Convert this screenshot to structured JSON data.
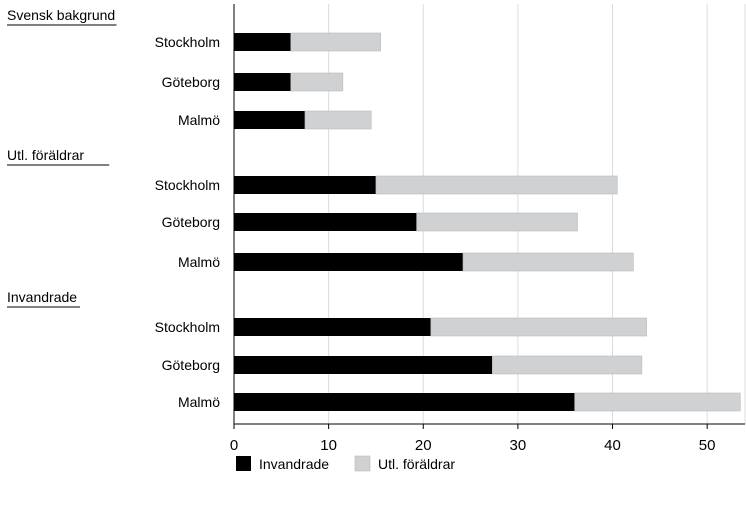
{
  "chart_data": {
    "type": "bar",
    "orientation": "horizontal",
    "stacked": true,
    "groups": [
      {
        "label": "Svensk bakgrund",
        "categories": [
          "Stockholm",
          "Göteborg",
          "Malmö"
        ],
        "series_values": {
          "Invandrade": [
            6.0,
            6.0,
            7.5
          ],
          "Utl. föräldrar": [
            9.5,
            5.5,
            7.0
          ]
        }
      },
      {
        "label": "Utl. föräldrar",
        "categories": [
          "Stockholm",
          "Göteborg",
          "Malmö"
        ],
        "series_values": {
          "Invandrade": [
            15.0,
            19.3,
            24.2
          ],
          "Utl. föräldrar": [
            25.5,
            17.0,
            18.0
          ]
        }
      },
      {
        "label": "Invandrade",
        "categories": [
          "Stockholm",
          "Göteborg",
          "Malmö"
        ],
        "series_values": {
          "Invandrade": [
            20.8,
            27.3,
            36.0
          ],
          "Utl. föräldrar": [
            22.8,
            15.8,
            17.5
          ]
        }
      }
    ],
    "series": [
      {
        "name": "Invandrade",
        "color": "#000000"
      },
      {
        "name": "Utl. föräldrar",
        "color": "#d0d1d3"
      }
    ],
    "xlim": [
      0,
      54
    ],
    "xticks": [
      0,
      10,
      20,
      30,
      40,
      50
    ],
    "grid": "vertical",
    "legend": "bottom",
    "title": "",
    "xlabel": "",
    "ylabel": ""
  }
}
